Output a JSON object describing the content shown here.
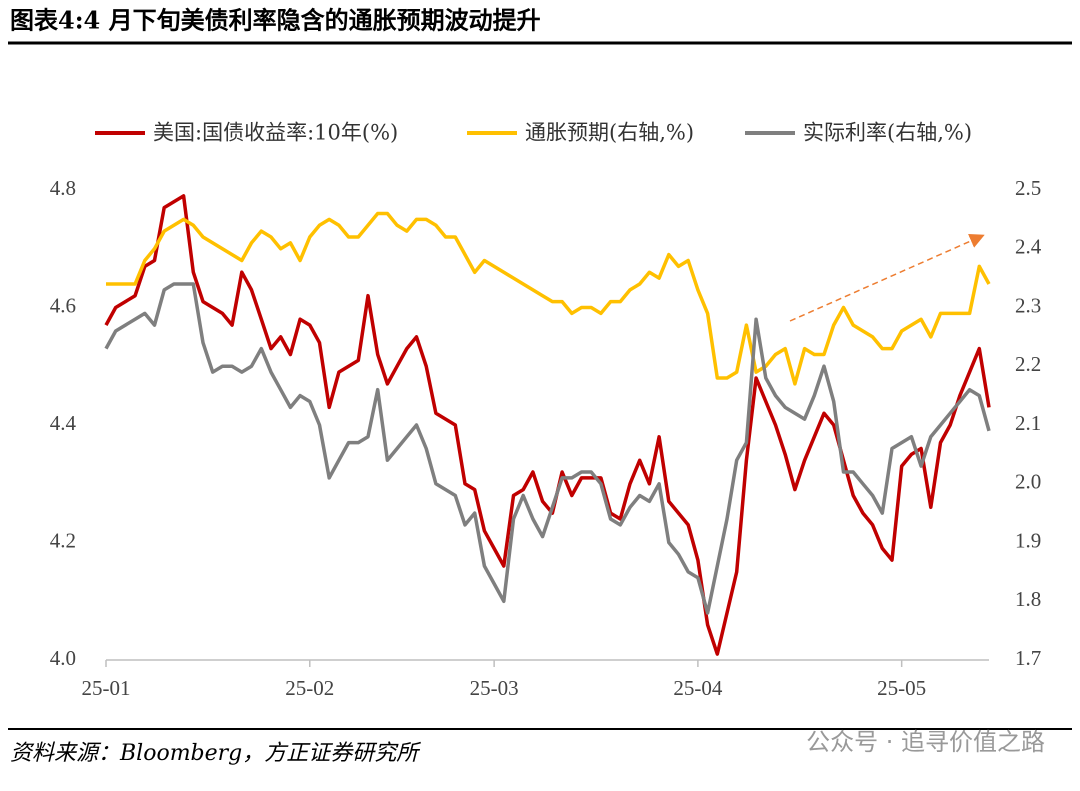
{
  "chart_data": {
    "type": "line",
    "title": "图表4:4 月下旬美债利率隐含的通胀预期波动提升",
    "source": "资料来源：Bloomberg，方正证券研究所",
    "watermark": "公众号 · 追寻价值之路",
    "categories": [
      "25-01",
      null,
      null,
      null,
      null,
      null,
      null,
      null,
      null,
      null,
      null,
      null,
      null,
      null,
      null,
      null,
      null,
      null,
      null,
      null,
      null,
      "25-02",
      null,
      null,
      null,
      null,
      null,
      null,
      null,
      null,
      null,
      null,
      null,
      null,
      null,
      null,
      null,
      null,
      null,
      null,
      "25-03",
      null,
      null,
      null,
      null,
      null,
      null,
      null,
      null,
      null,
      null,
      null,
      null,
      null,
      null,
      null,
      null,
      null,
      null,
      null,
      null,
      "25-04",
      null,
      null,
      null,
      null,
      null,
      null,
      null,
      null,
      null,
      null,
      null,
      null,
      null,
      null,
      null,
      null,
      null,
      null,
      null,
      null,
      "25-05",
      null,
      null,
      null,
      null,
      null,
      null,
      null,
      null,
      null
    ],
    "series": [
      {
        "name": "美国:国债收益率:10年(%)",
        "color": "#c00000",
        "values": [
          4.57,
          4.6,
          4.61,
          4.62,
          4.67,
          4.68,
          4.77,
          4.78,
          4.79,
          4.66,
          4.61,
          4.6,
          4.59,
          4.57,
          4.66,
          4.63,
          4.58,
          4.53,
          4.55,
          4.52,
          4.58,
          4.57,
          4.54,
          4.43,
          4.49,
          4.5,
          4.51,
          4.62,
          4.52,
          4.47,
          4.5,
          4.53,
          4.55,
          4.5,
          4.42,
          4.41,
          4.4,
          4.3,
          4.29,
          4.22,
          4.19,
          4.16,
          4.28,
          4.29,
          4.32,
          4.27,
          4.25,
          4.32,
          4.28,
          4.31,
          4.31,
          4.31,
          4.25,
          4.24,
          4.3,
          4.34,
          4.3,
          4.38,
          4.27,
          4.25,
          4.23,
          4.17,
          4.06,
          4.01,
          4.08,
          4.15,
          4.34,
          4.48,
          4.44,
          4.4,
          4.35,
          4.29,
          4.34,
          4.38,
          4.42,
          4.4,
          4.34,
          4.28,
          4.25,
          4.23,
          4.19,
          4.17,
          4.33,
          4.35,
          4.36,
          4.26,
          4.37,
          4.4,
          4.45,
          4.49,
          4.53,
          4.43
        ]
      },
      {
        "name": "通胀预期(右轴,%)",
        "color": "#ffc000",
        "axis": "y2",
        "values": [
          2.34,
          2.34,
          2.34,
          2.34,
          2.38,
          2.4,
          2.43,
          2.44,
          2.45,
          2.44,
          2.42,
          2.41,
          2.4,
          2.39,
          2.38,
          2.41,
          2.43,
          2.42,
          2.4,
          2.41,
          2.38,
          2.42,
          2.44,
          2.45,
          2.44,
          2.42,
          2.42,
          2.44,
          2.46,
          2.46,
          2.44,
          2.43,
          2.45,
          2.45,
          2.44,
          2.42,
          2.42,
          2.39,
          2.36,
          2.38,
          2.37,
          2.36,
          2.35,
          2.34,
          2.33,
          2.32,
          2.31,
          2.31,
          2.29,
          2.3,
          2.3,
          2.29,
          2.31,
          2.31,
          2.33,
          2.34,
          2.36,
          2.35,
          2.39,
          2.37,
          2.38,
          2.33,
          2.29,
          2.18,
          2.18,
          2.19,
          2.27,
          2.19,
          2.2,
          2.22,
          2.23,
          2.17,
          2.23,
          2.22,
          2.22,
          2.27,
          2.3,
          2.27,
          2.26,
          2.25,
          2.23,
          2.23,
          2.26,
          2.27,
          2.28,
          2.25,
          2.29,
          2.29,
          2.29,
          2.29,
          2.37,
          2.34
        ]
      },
      {
        "name": "实际利率(右轴,%)",
        "color": "#7f7f7f",
        "axis": "y2",
        "values": [
          2.23,
          2.26,
          2.27,
          2.28,
          2.29,
          2.27,
          2.33,
          2.34,
          2.34,
          2.34,
          2.24,
          2.19,
          2.2,
          2.2,
          2.19,
          2.2,
          2.23,
          2.19,
          2.16,
          2.13,
          2.15,
          2.14,
          2.1,
          2.01,
          2.04,
          2.07,
          2.07,
          2.08,
          2.16,
          2.04,
          2.06,
          2.08,
          2.1,
          2.06,
          2.0,
          1.99,
          1.98,
          1.93,
          1.95,
          1.86,
          1.83,
          1.8,
          1.94,
          1.98,
          1.94,
          1.91,
          1.96,
          2.01,
          2.01,
          2.02,
          2.02,
          2.0,
          1.94,
          1.93,
          1.96,
          1.98,
          1.97,
          2.0,
          1.9,
          1.88,
          1.85,
          1.84,
          1.78,
          1.86,
          1.94,
          2.04,
          2.07,
          2.28,
          2.18,
          2.15,
          2.13,
          2.12,
          2.11,
          2.15,
          2.2,
          2.14,
          2.02,
          2.02,
          2.0,
          1.98,
          1.95,
          2.06,
          2.07,
          2.08,
          2.03,
          2.08,
          2.1,
          2.12,
          2.14,
          2.16,
          2.15,
          2.09
        ]
      }
    ],
    "ylim": [
      4.0,
      4.8
    ],
    "yticks": [
      {
        "value": 4.0,
        "label": "4.0"
      },
      4.2,
      4.4,
      4.6,
      4.8
    ],
    "y2lim": [
      1.7,
      2.5
    ],
    "y2ticks": [
      1.7,
      1.8,
      1.9,
      {
        "value": 2.0,
        "label": "2.0"
      },
      2.1,
      2.2,
      2.3,
      2.4,
      2.5
    ],
    "grid": false,
    "legend": "top"
  }
}
